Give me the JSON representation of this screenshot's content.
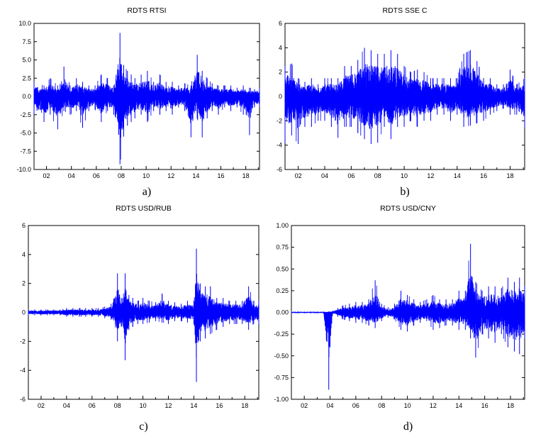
{
  "chart_data": [
    {
      "type": "line",
      "title": "RDTS RTSI",
      "caption": "a)",
      "xlabel": "",
      "ylabel": "",
      "ylim": [
        -10,
        10
      ],
      "yticks": [
        "10.0",
        "7.5",
        "5.0",
        "2.5",
        "0.0",
        "-2.5",
        "-5.0",
        "-7.5",
        "-10.0"
      ],
      "xlim": [
        2001.0,
        2019.1
      ],
      "xticks": [
        "02",
        "04",
        "06",
        "08",
        "10",
        "12",
        "14",
        "16",
        "18"
      ],
      "grid": false,
      "color": "#0000ff",
      "series": [
        {
          "x": [
            2001.0,
            2001.8,
            2002.3,
            2002.9,
            2003.4,
            2003.9,
            2004.4,
            2004.9,
            2005.4,
            2005.9,
            2006.4,
            2006.9,
            2007.4,
            2007.9,
            2008.2,
            2008.5,
            2008.8,
            2009.1,
            2009.6,
            2010.1,
            2010.6,
            2011.1,
            2011.6,
            2012.1,
            2012.6,
            2013.1,
            2013.6,
            2014.1,
            2014.5,
            2014.9,
            2015.3,
            2015.8,
            2016.3,
            2016.8,
            2017.3,
            2017.8,
            2018.3,
            2018.7,
            2019.1
          ],
          "lower": [
            -2.5,
            -3.5,
            -2.5,
            -4.5,
            -2.0,
            -2.5,
            -2.0,
            -4.3,
            -2.0,
            -1.8,
            -3.5,
            -2.0,
            -2.5,
            -9.3,
            -5.5,
            -4.0,
            -3.5,
            -3.0,
            -2.5,
            -3.5,
            -2.0,
            -2.5,
            -2.0,
            -2.5,
            -1.5,
            -2.0,
            -5.6,
            -3.0,
            -5.6,
            -3.0,
            -2.0,
            -2.5,
            -1.5,
            -2.0,
            -1.5,
            -2.5,
            -5.3,
            -1.5,
            -1.5
          ],
          "upper": [
            2.0,
            1.5,
            2.5,
            1.5,
            4.1,
            1.5,
            2.5,
            2.0,
            1.5,
            1.5,
            3.0,
            2.5,
            1.5,
            8.7,
            4.3,
            3.5,
            3.0,
            2.5,
            3.0,
            3.5,
            2.0,
            3.0,
            2.0,
            2.0,
            1.5,
            1.8,
            1.5,
            5.7,
            3.5,
            2.5,
            1.8,
            1.5,
            1.5,
            1.5,
            1.2,
            1.5,
            1.2,
            1.0,
            1.2
          ]
        }
      ]
    },
    {
      "type": "line",
      "title": "RDTS SSE C",
      "caption": "b)",
      "xlabel": "",
      "ylabel": "",
      "ylim": [
        -6,
        6
      ],
      "yticks": [
        "6",
        "4",
        "2",
        "0",
        "-2",
        "-4",
        "-6"
      ],
      "xlim": [
        2001.0,
        2019.1
      ],
      "xticks": [
        "02",
        "04",
        "06",
        "08",
        "10",
        "12",
        "14",
        "16",
        "18"
      ],
      "grid": false,
      "color": "#0000ff",
      "series": [
        {
          "x": [
            2001.0,
            2001.5,
            2002.0,
            2002.5,
            2003.0,
            2003.5,
            2004.0,
            2004.5,
            2005.0,
            2005.5,
            2006.0,
            2006.5,
            2007.0,
            2007.5,
            2008.0,
            2008.5,
            2009.0,
            2009.5,
            2010.0,
            2010.5,
            2011.0,
            2011.5,
            2012.0,
            2012.5,
            2013.0,
            2013.5,
            2014.0,
            2014.5,
            2015.0,
            2015.5,
            2016.0,
            2016.5,
            2017.0,
            2017.5,
            2018.0,
            2018.5,
            2019.1
          ],
          "lower": [
            -3.8,
            -3.2,
            -3.9,
            -2.5,
            -2.5,
            -2.0,
            -2.0,
            -2.5,
            -3.4,
            -2.5,
            -2.5,
            -3.0,
            -3.5,
            -3.9,
            -3.8,
            -2.5,
            -3.5,
            -2.5,
            -2.5,
            -2.0,
            -2.5,
            -2.0,
            -2.0,
            -1.5,
            -1.5,
            -2.0,
            -1.5,
            -2.5,
            -2.4,
            -2.2,
            -2.0,
            -1.5,
            -1.2,
            -1.0,
            -1.5,
            -1.5,
            -2.5
          ],
          "upper": [
            2.5,
            2.7,
            1.5,
            1.2,
            1.5,
            1.0,
            1.5,
            1.5,
            1.5,
            2.5,
            2.5,
            3.0,
            4.0,
            3.8,
            3.5,
            3.5,
            3.8,
            3.5,
            2.5,
            2.0,
            2.2,
            2.0,
            1.5,
            1.5,
            1.5,
            1.5,
            1.5,
            3.5,
            3.8,
            2.9,
            1.5,
            1.5,
            1.0,
            1.0,
            2.2,
            1.0,
            1.5
          ]
        }
      ]
    },
    {
      "type": "line",
      "title": "RDTS USD/RUB",
      "caption": "c)",
      "xlabel": "",
      "ylabel": "",
      "ylim": [
        -6,
        6
      ],
      "yticks": [
        "6",
        "4",
        "2",
        "0",
        "-2",
        "-4",
        "-6"
      ],
      "xlim": [
        2001.0,
        2019.1
      ],
      "xticks": [
        "02",
        "04",
        "06",
        "08",
        "10",
        "12",
        "14",
        "16",
        "18"
      ],
      "grid": false,
      "color": "#0000ff",
      "series": [
        {
          "x": [
            2001.0,
            2001.5,
            2002.0,
            2002.5,
            2003.0,
            2003.5,
            2004.0,
            2004.5,
            2005.0,
            2005.5,
            2006.0,
            2006.5,
            2007.0,
            2007.5,
            2008.0,
            2008.3,
            2008.6,
            2008.9,
            2009.2,
            2009.6,
            2010.0,
            2010.5,
            2011.0,
            2011.5,
            2012.0,
            2012.5,
            2013.0,
            2013.5,
            2014.0,
            2014.2,
            2014.5,
            2014.9,
            2015.3,
            2015.8,
            2016.3,
            2016.8,
            2017.3,
            2017.8,
            2018.3,
            2018.7,
            2019.1
          ],
          "lower": [
            -0.2,
            -0.2,
            -0.2,
            -0.2,
            -0.2,
            -0.2,
            -0.3,
            -0.3,
            -0.3,
            -0.3,
            -0.3,
            -0.3,
            -0.4,
            -0.5,
            -2.0,
            -1.0,
            -3.3,
            -1.2,
            -1.0,
            -0.8,
            -0.8,
            -0.7,
            -0.6,
            -0.7,
            -0.8,
            -0.6,
            -0.6,
            -0.7,
            -0.8,
            -4.8,
            -2.0,
            -1.8,
            -1.5,
            -1.2,
            -1.0,
            -0.8,
            -0.8,
            -0.8,
            -1.2,
            -0.8,
            -0.8
          ],
          "upper": [
            0.2,
            0.2,
            0.2,
            0.2,
            0.2,
            0.2,
            0.3,
            0.3,
            0.3,
            0.3,
            0.3,
            0.3,
            0.4,
            0.6,
            2.7,
            1.0,
            2.7,
            1.2,
            1.0,
            0.8,
            1.0,
            0.8,
            0.7,
            1.3,
            0.8,
            0.7,
            0.6,
            0.8,
            0.8,
            4.4,
            2.0,
            1.8,
            1.8,
            1.0,
            1.0,
            0.8,
            0.8,
            0.8,
            1.8,
            0.8,
            0.8
          ]
        }
      ]
    },
    {
      "type": "line",
      "title": "RDTS USD/CNY",
      "caption": "d)",
      "xlabel": "",
      "ylabel": "",
      "ylim": [
        -1.0,
        1.0
      ],
      "yticks": [
        "1.00",
        "0.75",
        "0.50",
        "0.25",
        "0.00",
        "-0.25",
        "-0.50",
        "-0.75",
        "-1.00"
      ],
      "xlim": [
        2001.0,
        2019.1
      ],
      "xticks": [
        "02",
        "04",
        "06",
        "08",
        "10",
        "12",
        "14",
        "16",
        "18"
      ],
      "grid": false,
      "color": "#0000ff",
      "series": [
        {
          "x": [
            2001.0,
            2001.5,
            2002.0,
            2002.5,
            2003.0,
            2003.5,
            2003.9,
            2004.2,
            2004.6,
            2005.0,
            2005.5,
            2006.0,
            2006.5,
            2007.0,
            2007.5,
            2008.0,
            2008.5,
            2009.0,
            2009.5,
            2010.0,
            2010.5,
            2011.0,
            2011.5,
            2012.0,
            2012.5,
            2013.0,
            2013.5,
            2014.0,
            2014.5,
            2014.9,
            2015.3,
            2015.8,
            2016.3,
            2016.8,
            2017.3,
            2017.8,
            2018.3,
            2018.7,
            2019.1
          ],
          "lower": [
            -0.01,
            -0.01,
            -0.01,
            -0.01,
            -0.01,
            -0.01,
            -0.89,
            -0.02,
            -0.05,
            -0.08,
            -0.1,
            -0.12,
            -0.12,
            -0.15,
            -0.18,
            -0.1,
            -0.06,
            -0.08,
            -0.2,
            -0.22,
            -0.15,
            -0.12,
            -0.1,
            -0.2,
            -0.18,
            -0.15,
            -0.15,
            -0.2,
            -0.2,
            -0.3,
            -0.52,
            -0.25,
            -0.3,
            -0.35,
            -0.25,
            -0.4,
            -0.45,
            -0.48,
            -0.3
          ],
          "upper": [
            0.01,
            0.01,
            0.01,
            0.01,
            0.01,
            0.01,
            0.01,
            0.02,
            0.05,
            0.08,
            0.1,
            0.12,
            0.12,
            0.15,
            0.37,
            0.1,
            0.06,
            0.1,
            0.25,
            0.2,
            0.15,
            0.12,
            0.15,
            0.2,
            0.15,
            0.15,
            0.15,
            0.25,
            0.25,
            0.79,
            0.35,
            0.25,
            0.3,
            0.3,
            0.28,
            0.4,
            0.35,
            0.4,
            0.3
          ]
        }
      ]
    }
  ]
}
